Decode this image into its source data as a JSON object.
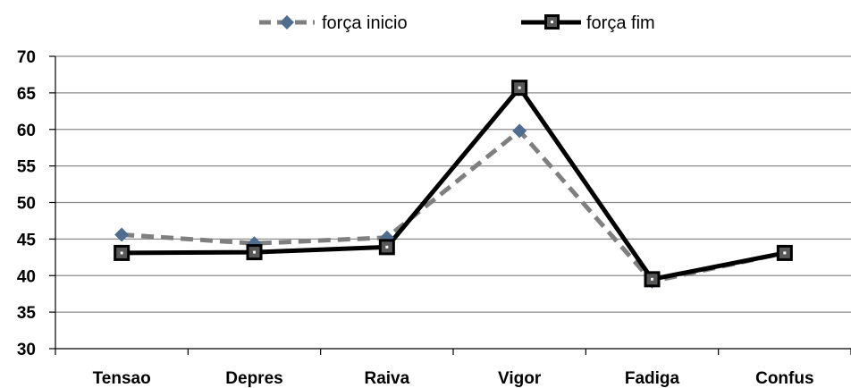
{
  "chart_data": {
    "type": "line",
    "title": "",
    "xlabel": "",
    "ylabel": "",
    "categories": [
      "Tensao",
      "Depres",
      "Raiva",
      "Vigor",
      "Fadiga",
      "Confus"
    ],
    "ylim": [
      30,
      70
    ],
    "yticks": [
      30,
      35,
      40,
      45,
      50,
      55,
      60,
      65,
      70
    ],
    "grid": "horizontal",
    "legend_position": "top-center",
    "series": [
      {
        "name": "força inicio",
        "values": [
          45.6,
          44.4,
          45.2,
          59.8,
          39.2,
          43.1
        ],
        "color": "#7f7f7f",
        "marker": "diamond",
        "marker_color": "#4f6d8f",
        "line_style": "dashed"
      },
      {
        "name": "força fim",
        "values": [
          43.1,
          43.2,
          43.9,
          65.7,
          39.5,
          43.1
        ],
        "color": "#000000",
        "marker": "square",
        "marker_color": "#595959",
        "line_style": "solid"
      }
    ]
  }
}
